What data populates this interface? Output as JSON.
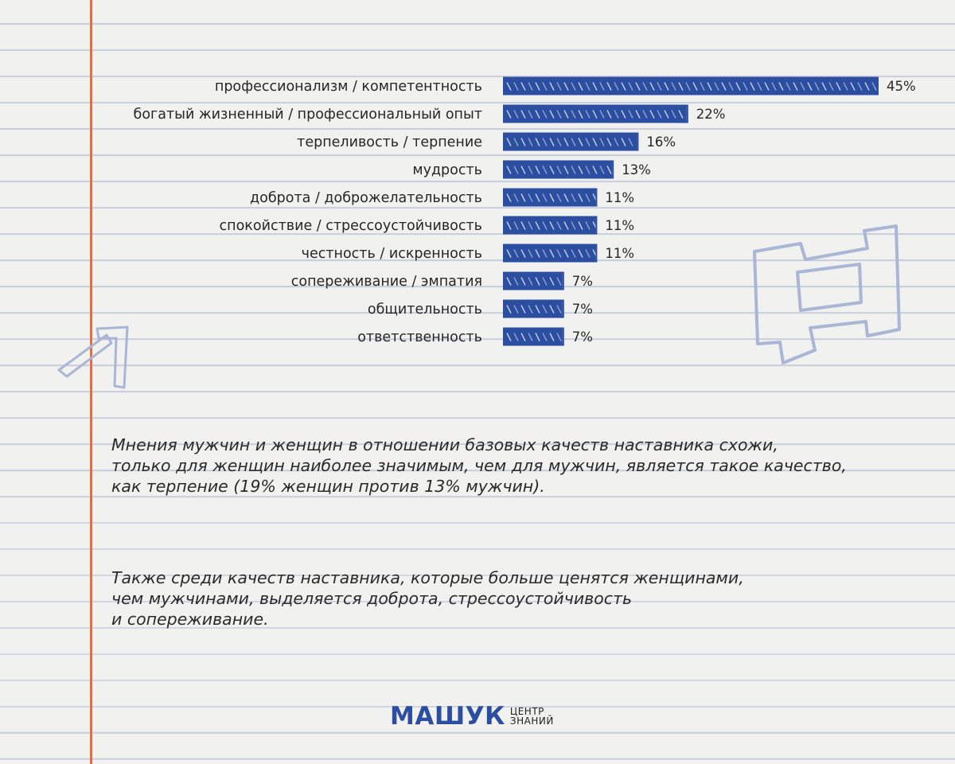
{
  "chart_data": {
    "type": "bar",
    "orientation": "horizontal",
    "categories": [
      "профессионализм / компетентность",
      "богатый жизненный / профессиональный опыт",
      "терпеливость / терпение",
      "мудрость",
      "доброта / доброжелательность",
      "спокойствие / стрессоустойчивость",
      "честность / искренность",
      "сопереживание / эмпатия",
      "общительность",
      "ответственность"
    ],
    "values": [
      45,
      22,
      16,
      13,
      11,
      11,
      11,
      7,
      7,
      7
    ],
    "value_labels": [
      "45%",
      "22%",
      "16%",
      "13%",
      "11%",
      "11%",
      "11%",
      "7%",
      "7%",
      "7%"
    ],
    "unit": "%",
    "bar_color": "#2c4ea0",
    "grid": false,
    "legend": "none"
  },
  "notes": {
    "paragraph1": "Мнения мужчин и женщин в отношении базовых качеств наставника схожи,\nтолько для женщин наиболее значимым, чем для мужчин, является такое качество,\nкак терпение (19% женщин против 13% мужчин).",
    "paragraph2": "Также среди качеств наставника, которые больше ценятся женщинами,\nчем мужчинами, выделяется доброта, стрессоустойчивость\nи сопереживание."
  },
  "logo": {
    "main": "МАШУК",
    "sub_line1": "ЦЕНТР",
    "sub_line2": "ЗНАНИЙ"
  },
  "colors": {
    "paper": "#f1f1ef",
    "ruled_line": "#c3c9da",
    "margin_line": "#ee6a3e",
    "brand_blue": "#2c4ea0",
    "decoration": "#a9b6d6"
  }
}
